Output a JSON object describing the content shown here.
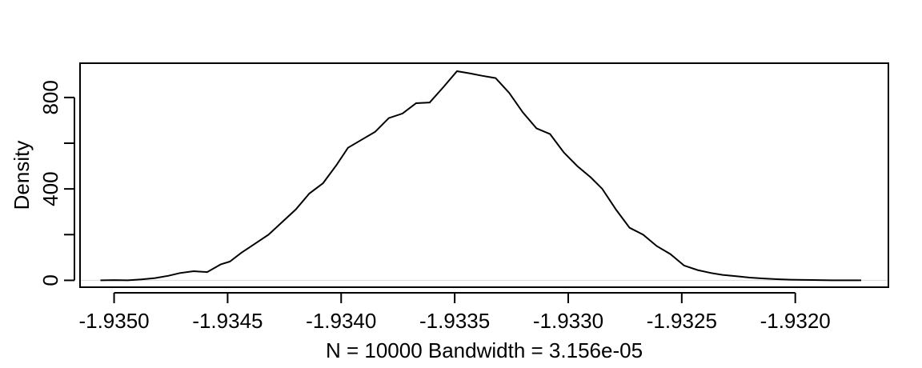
{
  "chart_data": {
    "type": "line",
    "title": "",
    "xlabel": "N = 10000   Bandwidth = 3.156e-05",
    "ylabel": "Density",
    "xlim": [
      -1.93515,
      -1.93159
    ],
    "ylim": [
      -30,
      950
    ],
    "x_ticks": [
      -1.935,
      -1.9345,
      -1.934,
      -1.9335,
      -1.933,
      -1.9325,
      -1.932
    ],
    "x_tick_labels": [
      "-1.9350",
      "-1.9345",
      "-1.9340",
      "-1.9335",
      "-1.9330",
      "-1.9325",
      "-1.9320"
    ],
    "y_ticks": [
      0,
      200,
      400,
      600,
      800
    ],
    "y_tick_labels": [
      "0",
      "",
      "400",
      "",
      "800"
    ],
    "baseline": 0,
    "series": [
      {
        "x": [
          -1.93506,
          -1.935,
          -1.93494,
          -1.93488,
          -1.93482,
          -1.93476,
          -1.93471,
          -1.93465,
          -1.93459,
          -1.93453,
          -1.93449,
          -1.93444,
          -1.93438,
          -1.93432,
          -1.93426,
          -1.9342,
          -1.93414,
          -1.93408,
          -1.93402,
          -1.93397,
          -1.93391,
          -1.93385,
          -1.93379,
          -1.93373,
          -1.93367,
          -1.93361,
          -1.93355,
          -1.93349,
          -1.93343,
          -1.93338,
          -1.93332,
          -1.93326,
          -1.9332,
          -1.93314,
          -1.93308,
          -1.93302,
          -1.93296,
          -1.9329,
          -1.93285,
          -1.93279,
          -1.93273,
          -1.93267,
          -1.93261,
          -1.93255,
          -1.93249,
          -1.93243,
          -1.93237,
          -1.93232,
          -1.93226,
          -1.9322,
          -1.93214,
          -1.93208,
          -1.93202,
          -1.93196,
          -1.9319,
          -1.93184,
          -1.93171
        ],
        "y": [
          0,
          1,
          0,
          4,
          10,
          20,
          32,
          40,
          36,
          70,
          82,
          120,
          160,
          200,
          255,
          310,
          380,
          425,
          505,
          580,
          615,
          650,
          710,
          730,
          775,
          778,
          845,
          915,
          905,
          895,
          885,
          820,
          735,
          665,
          640,
          560,
          500,
          450,
          400,
          310,
          230,
          200,
          150,
          115,
          65,
          45,
          32,
          24,
          18,
          12,
          8,
          5,
          3,
          2,
          1,
          0,
          0
        ]
      }
    ]
  }
}
